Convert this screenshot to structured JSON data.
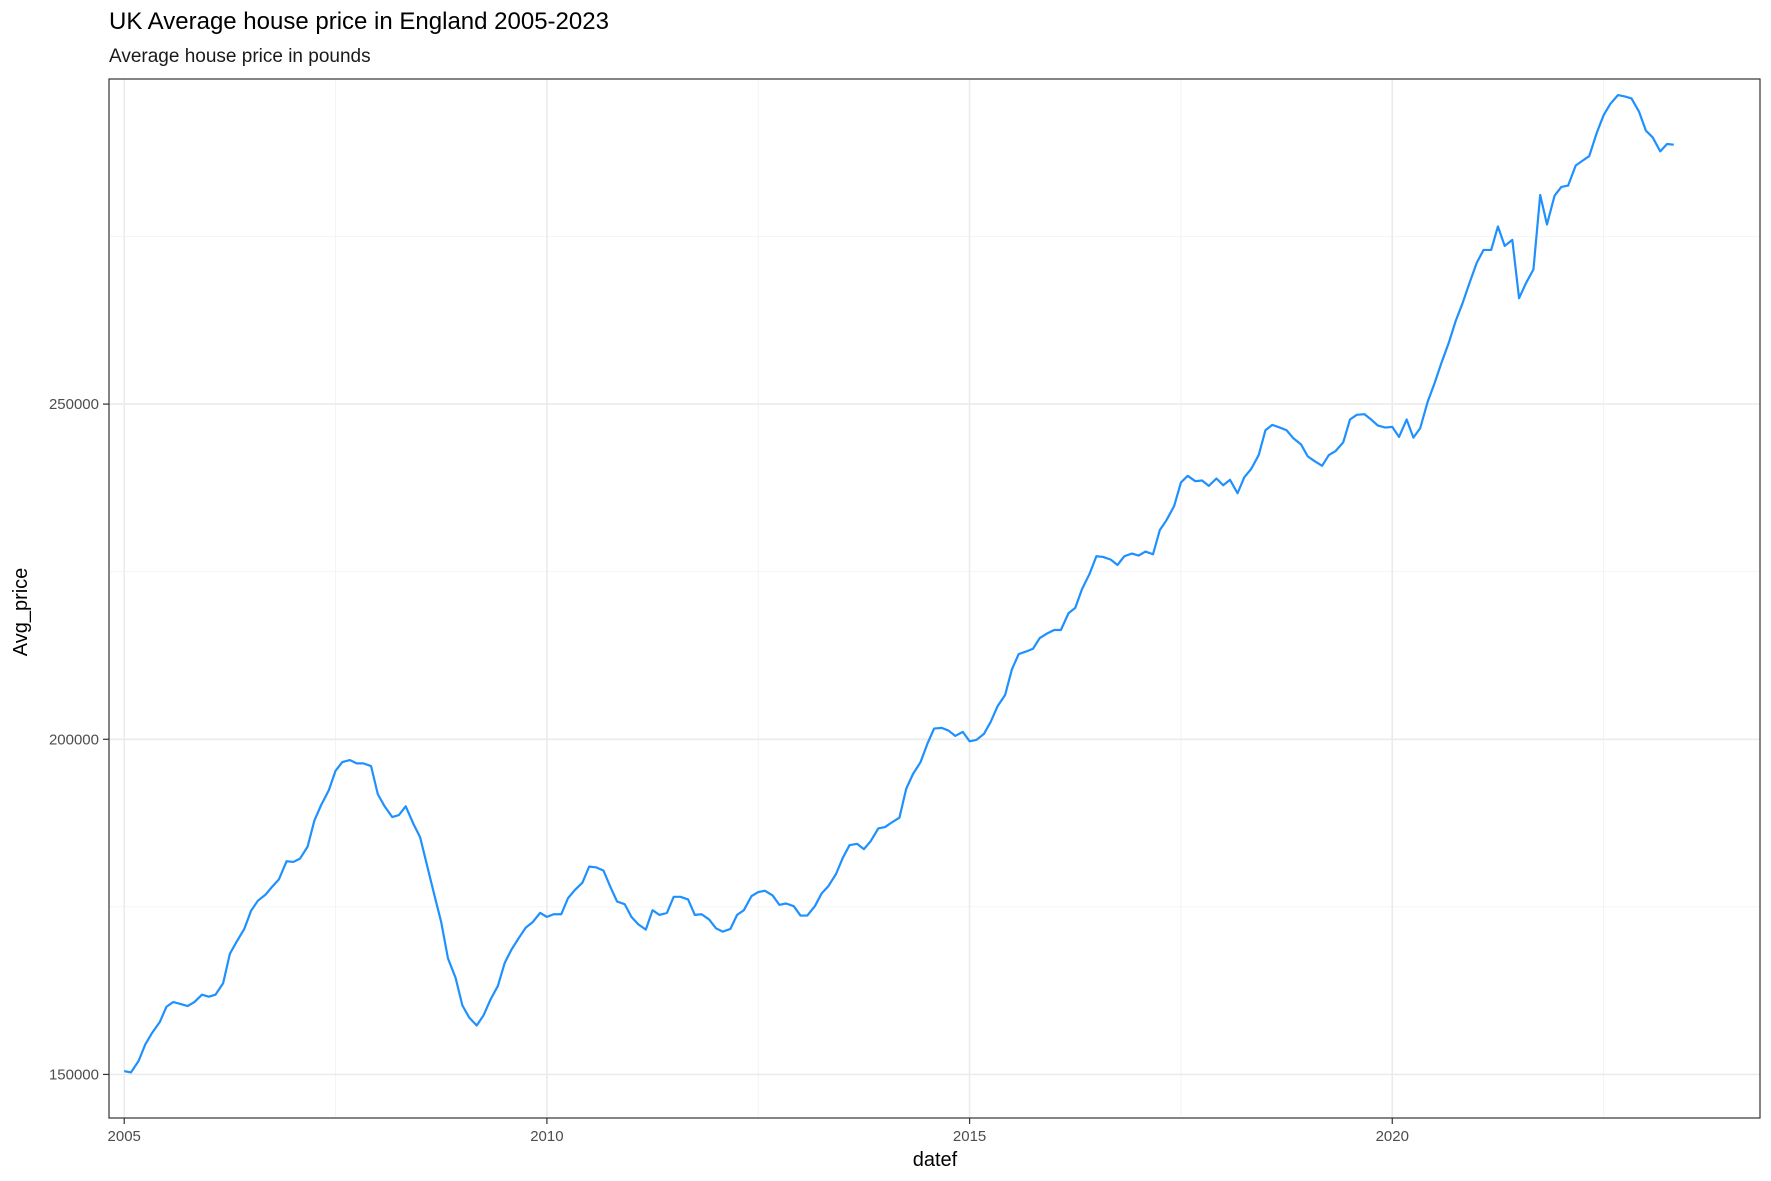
{
  "chart_data": {
    "type": "line",
    "title": "UK Average house price in England 2005-2023",
    "subtitle": "Average house price in pounds",
    "xlabel": "datef",
    "ylabel": "Avg_price",
    "xlim": [
      2004.82,
      2024.35
    ],
    "ylim": [
      143500,
      298500
    ],
    "x_ticks": [
      2005,
      2010,
      2015,
      2020
    ],
    "x_tick_labels": [
      "2005",
      "2010",
      "2015",
      "2020"
    ],
    "y_ticks": [
      150000,
      200000,
      250000
    ],
    "y_tick_labels": [
      "150000",
      "200000",
      "250000"
    ],
    "grid": true,
    "line_color": "#1E90FF",
    "series": [
      {
        "x": [
          2005.0,
          2005.08,
          2005.17,
          2005.25,
          2005.33,
          2005.42,
          2005.5,
          2005.58,
          2005.67,
          2005.75,
          2005.83,
          2005.92,
          2006.0,
          2006.08,
          2006.17,
          2006.25,
          2006.33,
          2006.42,
          2006.5,
          2006.58,
          2006.67,
          2006.75,
          2006.83,
          2006.92,
          2007.0,
          2007.08,
          2007.17,
          2007.25,
          2007.33,
          2007.42,
          2007.5,
          2007.58,
          2007.67,
          2007.75,
          2007.83,
          2007.92,
          2008.0,
          2008.08,
          2008.17,
          2008.25,
          2008.33,
          2008.42,
          2008.5,
          2008.58,
          2008.67,
          2008.75,
          2008.83,
          2008.92,
          2009.0,
          2009.08,
          2009.17,
          2009.25,
          2009.33,
          2009.42,
          2009.5,
          2009.58,
          2009.67,
          2009.75,
          2009.83,
          2009.92,
          2010.0,
          2010.08,
          2010.17,
          2010.25,
          2010.33,
          2010.42,
          2010.5,
          2010.58,
          2010.67,
          2010.75,
          2010.83,
          2010.92,
          2011.0,
          2011.08,
          2011.17,
          2011.25,
          2011.33,
          2011.42,
          2011.5,
          2011.58,
          2011.67,
          2011.75,
          2011.83,
          2011.92,
          2012.0,
          2012.08,
          2012.17,
          2012.25,
          2012.33,
          2012.42,
          2012.5,
          2012.58,
          2012.67,
          2012.75,
          2012.83,
          2012.92,
          2013.0,
          2013.08,
          2013.17,
          2013.25,
          2013.33,
          2013.42,
          2013.5,
          2013.58,
          2013.67,
          2013.75,
          2013.83,
          2013.92,
          2014.0,
          2014.08,
          2014.17,
          2014.25,
          2014.33,
          2014.42,
          2014.5,
          2014.58,
          2014.67,
          2014.75,
          2014.83,
          2014.92,
          2015.0,
          2015.08,
          2015.17,
          2015.25,
          2015.33,
          2015.42,
          2015.5,
          2015.58,
          2015.67,
          2015.75,
          2015.83,
          2015.92,
          2016.0,
          2016.08,
          2016.17,
          2016.25,
          2016.33,
          2016.42,
          2016.5,
          2016.58,
          2016.67,
          2016.75,
          2016.83,
          2016.92,
          2017.0,
          2017.08,
          2017.17,
          2017.25,
          2017.33,
          2017.42,
          2017.5,
          2017.58,
          2017.67,
          2017.75,
          2017.83,
          2017.92,
          2018.0,
          2018.08,
          2018.17,
          2018.25,
          2018.33,
          2018.42,
          2018.5,
          2018.58,
          2018.67,
          2018.75,
          2018.83,
          2018.92,
          2019.0,
          2019.08,
          2019.17,
          2019.25,
          2019.33,
          2019.42,
          2019.5,
          2019.58,
          2019.67,
          2019.75,
          2019.83,
          2019.92,
          2020.0,
          2020.08,
          2020.17,
          2020.25,
          2020.33,
          2020.42,
          2020.5,
          2020.58,
          2020.67,
          2020.75,
          2020.83,
          2020.92,
          2021.0,
          2021.08,
          2021.17,
          2021.25,
          2021.33,
          2021.42,
          2021.5,
          2021.58,
          2021.67,
          2021.75,
          2021.83,
          2021.92,
          2022.0,
          2022.08,
          2022.17,
          2022.25,
          2022.33,
          2022.42,
          2022.5,
          2022.58,
          2022.67,
          2022.75,
          2022.83,
          2022.92,
          2023.0,
          2023.08,
          2023.17,
          2023.25,
          2023.33
        ],
        "y": [
          150500,
          150300,
          152000,
          154500,
          156200,
          157800,
          160100,
          160800,
          160500,
          160200,
          160800,
          161900,
          161600,
          161900,
          163600,
          168000,
          169800,
          171700,
          174400,
          175900,
          176800,
          178000,
          179100,
          181800,
          181700,
          182200,
          184000,
          187900,
          190200,
          192400,
          195300,
          196600,
          196900,
          196400,
          196400,
          196000,
          191800,
          190000,
          188400,
          188700,
          190000,
          187400,
          185400,
          181300,
          176700,
          172700,
          167300,
          164400,
          160300,
          158500,
          157300,
          158800,
          161100,
          163200,
          166600,
          168600,
          170400,
          171900,
          172700,
          174100,
          173500,
          173900,
          173900,
          176300,
          177500,
          178600,
          181000,
          180900,
          180400,
          178000,
          175800,
          175400,
          173500,
          172400,
          171600,
          174500,
          173800,
          174100,
          176500,
          176500,
          176100,
          173800,
          173900,
          173100,
          171800,
          171300,
          171700,
          173800,
          174500,
          176600,
          177200,
          177400,
          176700,
          175300,
          175500,
          175100,
          173700,
          173700,
          175100,
          177000,
          178100,
          179900,
          182300,
          184200,
          184400,
          183600,
          184800,
          186700,
          186900,
          187600,
          188300,
          192600,
          194800,
          196600,
          199300,
          201600,
          201700,
          201300,
          200500,
          201100,
          199700,
          199900,
          200800,
          202600,
          204900,
          206600,
          210400,
          212700,
          213100,
          213500,
          215100,
          215800,
          216300,
          216300,
          218800,
          219600,
          222400,
          224700,
          227300,
          227200,
          226800,
          226000,
          227300,
          227700,
          227400,
          228000,
          227600,
          231200,
          232700,
          234800,
          238300,
          239300,
          238500,
          238600,
          237800,
          238900,
          237900,
          238700,
          236700,
          239100,
          240300,
          242400,
          246100,
          246900,
          246500,
          246100,
          244900,
          244000,
          242200,
          241500,
          240800,
          242400,
          243000,
          244300,
          247700,
          248400,
          248500,
          247700,
          246800,
          246500,
          246600,
          245100,
          247700,
          245000,
          246400,
          250400,
          253100,
          256100,
          259200,
          262400,
          265000,
          268300,
          271100,
          273000,
          273000,
          276500,
          273600,
          274500,
          265800,
          268000,
          270100,
          281200,
          276800,
          281100,
          282400,
          282600,
          285600,
          286300,
          287000,
          290500,
          293100,
          294800,
          296100,
          295900,
          295600,
          293600,
          290800,
          289800,
          287700,
          288800,
          288700
        ]
      }
    ]
  }
}
